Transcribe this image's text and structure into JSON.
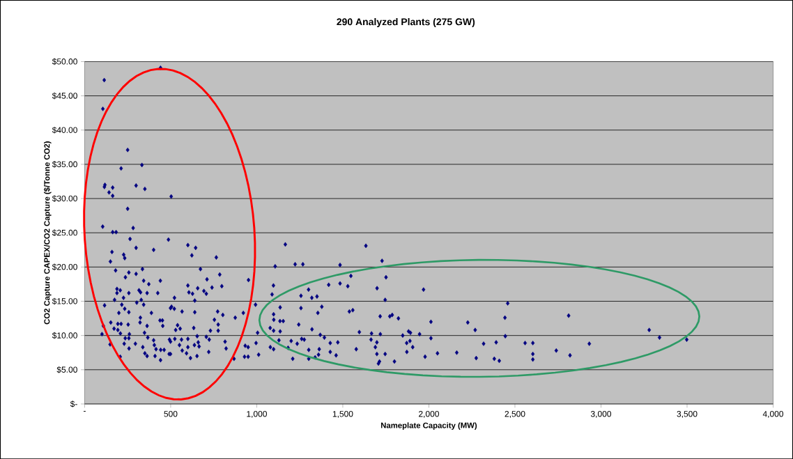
{
  "chart_data": {
    "type": "scatter",
    "title": "290 Analyzed Plants (275 GW)",
    "xlabel": "Nameplate Capacity (MW)",
    "ylabel": "CO2 Capture CAPEX/CO2 Capture ($/Tonne CO2)",
    "color": "#000080",
    "marker": "diamond",
    "grid": "y",
    "xlim": [
      0,
      4000
    ],
    "ylim": [
      0,
      50
    ],
    "xticks": [
      {
        "value": 0,
        "label": "-"
      },
      {
        "value": 500,
        "label": "500"
      },
      {
        "value": 1000,
        "label": "1,000"
      },
      {
        "value": 1500,
        "label": "1,500"
      },
      {
        "value": 2000,
        "label": "2,000"
      },
      {
        "value": 2500,
        "label": "2,500"
      },
      {
        "value": 3000,
        "label": "3,000"
      },
      {
        "value": 3500,
        "label": "3,500"
      },
      {
        "value": 4000,
        "label": "4,000"
      }
    ],
    "yticks": [
      {
        "value": 0,
        "label": "$-"
      },
      {
        "value": 5,
        "label": "$5.00"
      },
      {
        "value": 10,
        "label": "$10.00"
      },
      {
        "value": 15,
        "label": "$15.00"
      },
      {
        "value": 20,
        "label": "$20.00"
      },
      {
        "value": 25,
        "label": "$25.00"
      },
      {
        "value": 30,
        "label": "$30.00"
      },
      {
        "value": 35,
        "label": "$35.00"
      },
      {
        "value": 40,
        "label": "$40.00"
      },
      {
        "value": 45,
        "label": "$45.00"
      },
      {
        "value": 50,
        "label": "$50.00"
      }
    ],
    "x": [
      114,
      106,
      441,
      250,
      212,
      333,
      118,
      115,
      163,
      142,
      163,
      299,
      350,
      503,
      250,
      105,
      163,
      183,
      282,
      264,
      299,
      401,
      487,
      159,
      150,
      227,
      233,
      180,
      257,
      237,
      299,
      336,
      343,
      373,
      440,
      188,
      188,
      207,
      174,
      226,
      257,
      316,
      325,
      363,
      425,
      303,
      329,
      343,
      116,
      216,
      233,
      257,
      199,
      388,
      499,
      324,
      438,
      452,
      152,
      109,
      193,
      212,
      253,
      171,
      193,
      322,
      363,
      454,
      101,
      208,
      260,
      348,
      236,
      257,
      367,
      401,
      493,
      148,
      230,
      295,
      405,
      415,
      258,
      338,
      442,
      462,
      491,
      350,
      363,
      409,
      441,
      207,
      600,
      645,
      623,
      765,
      673,
      785,
      711,
      952,
      600,
      657,
      740,
      797,
      606,
      627,
      693,
      707,
      522,
      640,
      505,
      566,
      640,
      521,
      773,
      803,
      875,
      922,
      993,
      754,
      776,
      776,
      634,
      540,
      555,
      731,
      529,
      499,
      524,
      563,
      600,
      654,
      707,
      724,
      1005,
      660,
      816,
      996,
      551,
      600,
      638,
      665,
      822,
      933,
      950,
      567,
      592,
      499,
      721,
      1011,
      615,
      653,
      868,
      929,
      950,
      1166,
      1634,
      1107,
      1223,
      1268,
      1484,
      1728,
      1547,
      1751,
      1097,
      1418,
      1484,
      1529,
      1699,
      1969,
      1089,
      1257,
      1301,
      1320,
      1350,
      1136,
      1257,
      1378,
      1746,
      1098,
      1355,
      1538,
      1558,
      1717,
      1773,
      1787,
      1823,
      2012,
      1099,
      1135,
      1154,
      1244,
      1078,
      1098,
      1136,
      1321,
      1596,
      1667,
      1718,
      1848,
      1882,
      1893,
      1946,
      1369,
      1393,
      1261,
      1276,
      1200,
      1129,
      1664,
      2012,
      1235,
      1427,
      1471,
      1698,
      1871,
      1890,
      1906,
      1079,
      1098,
      1182,
      1302,
      1363,
      1578,
      1689,
      1427,
      1461,
      1359,
      1339,
      1302,
      1209,
      1698,
      1746,
      1872,
      1800,
      1713,
      1707,
      1978,
      2050,
      2458,
      2442,
      2812,
      2226,
      2269,
      2444,
      3280,
      3340,
      3498,
      2318,
      2391,
      2559,
      2604,
      2932,
      2162,
      2604,
      2740,
      2275,
      2380,
      2409,
      2604,
      2820
    ],
    "values": [
      47.3,
      43.1,
      49.1,
      37.1,
      34.4,
      34.9,
      32.0,
      31.7,
      31.6,
      30.9,
      30.4,
      31.9,
      31.4,
      30.3,
      28.5,
      25.9,
      25.1,
      25.1,
      25.7,
      24.1,
      22.8,
      22.5,
      24.0,
      22.2,
      20.8,
      21.8,
      21.3,
      19.5,
      19.2,
      18.5,
      19.0,
      19.7,
      18.0,
      17.5,
      18.0,
      16.8,
      16.2,
      16.6,
      15.2,
      15.5,
      16.2,
      16.6,
      16.3,
      16.2,
      16.2,
      14.8,
      15.2,
      14.5,
      14.4,
      14.5,
      13.9,
      13.4,
      13.3,
      13.3,
      14.0,
      12.6,
      12.2,
      12.2,
      11.9,
      11.4,
      11.7,
      11.7,
      11.6,
      11.0,
      10.8,
      11.9,
      11.4,
      11.4,
      10.2,
      10.3,
      10.2,
      10.4,
      9.6,
      9.6,
      9.7,
      9.3,
      9.4,
      8.7,
      8.8,
      8.8,
      8.6,
      8.0,
      8.1,
      8.3,
      7.9,
      7.9,
      7.3,
      7.4,
      7.0,
      7.0,
      6.4,
      6.9,
      23.2,
      22.8,
      21.7,
      21.4,
      19.7,
      18.9,
      18.2,
      18.1,
      17.3,
      16.9,
      17.0,
      17.2,
      16.3,
      16.1,
      16.5,
      16.1,
      15.5,
      15.1,
      14.2,
      13.5,
      13.4,
      13.9,
      13.5,
      13.0,
      12.6,
      13.3,
      14.5,
      12.3,
      11.6,
      10.7,
      11.1,
      11.5,
      11.0,
      10.7,
      10.8,
      9.1,
      9.5,
      9.4,
      9.5,
      9.9,
      9.8,
      9.4,
      10.4,
      9.0,
      9.1,
      8.9,
      8.6,
      8.3,
      8.6,
      8.4,
      8.1,
      8.5,
      8.3,
      7.8,
      7.4,
      7.3,
      7.6,
      7.2,
      6.7,
      7.0,
      6.6,
      6.9,
      6.9,
      23.3,
      23.1,
      20.1,
      20.4,
      20.4,
      20.3,
      20.9,
      18.7,
      18.5,
      17.3,
      17.4,
      17.6,
      17.2,
      16.9,
      16.7,
      16.0,
      15.8,
      16.7,
      15.5,
      15.7,
      14.1,
      14.0,
      14.2,
      15.2,
      13.1,
      13.3,
      13.5,
      13.7,
      12.8,
      12.8,
      13.0,
      12.5,
      12.0,
      12.3,
      12.1,
      12.1,
      11.6,
      11.1,
      10.7,
      10.6,
      10.9,
      10.5,
      10.3,
      10.2,
      10.0,
      10.6,
      10.4,
      10.2,
      10.1,
      9.7,
      9.5,
      9.4,
      9.2,
      9.3,
      9.4,
      9.6,
      8.8,
      8.9,
      9.0,
      9.0,
      8.9,
      9.2,
      8.3,
      8.3,
      8.0,
      8.2,
      7.9,
      8.0,
      8.0,
      8.3,
      7.6,
      7.1,
      7.2,
      6.8,
      6.6,
      6.6,
      7.3,
      7.3,
      7.6,
      6.2,
      6.2,
      5.9,
      6.9,
      7.4,
      14.7,
      12.6,
      12.9,
      11.9,
      10.8,
      9.9,
      10.8,
      9.7,
      9.4,
      8.8,
      9.0,
      8.9,
      8.9,
      8.8,
      7.5,
      7.3,
      7.8,
      6.7,
      6.6,
      6.3,
      6.5,
      7.1
    ]
  }
}
